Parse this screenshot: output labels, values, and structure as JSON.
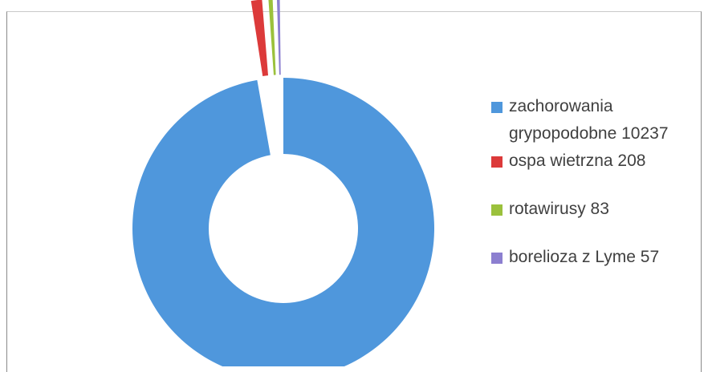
{
  "chart_data": {
    "type": "pie",
    "variant": "donut",
    "title": "",
    "series": [
      {
        "name": "",
        "slices": [
          {
            "label": "zachorowania grypopodobne 10237",
            "value": 10237,
            "color": "#4f97dc"
          },
          {
            "label": "ospa wietrzna 208",
            "value": 208,
            "color": "#dc3a3a"
          },
          {
            "label": "rotawirusy 83",
            "value": 83,
            "color": "#9bc13c"
          },
          {
            "label": "borelioza z Lyme 57",
            "value": 57,
            "color": "#8c7fd0"
          }
        ]
      }
    ],
    "legend_position": "right",
    "exploded_slices": [
      "ospa wietrzna 208",
      "rotawirusy 83",
      "borelioza z Lyme 57"
    ]
  },
  "legend": {
    "items": [
      {
        "line1": "zachorowania",
        "line2": "grypopodobne 10237",
        "color": "#4f97dc"
      },
      {
        "line1": "ospa wietrzna 208",
        "color": "#dc3a3a"
      },
      {
        "line1": "rotawirusy 83",
        "color": "#9bc13c"
      },
      {
        "line1": "borelioza z Lyme 57",
        "color": "#8c7fd0"
      }
    ]
  }
}
